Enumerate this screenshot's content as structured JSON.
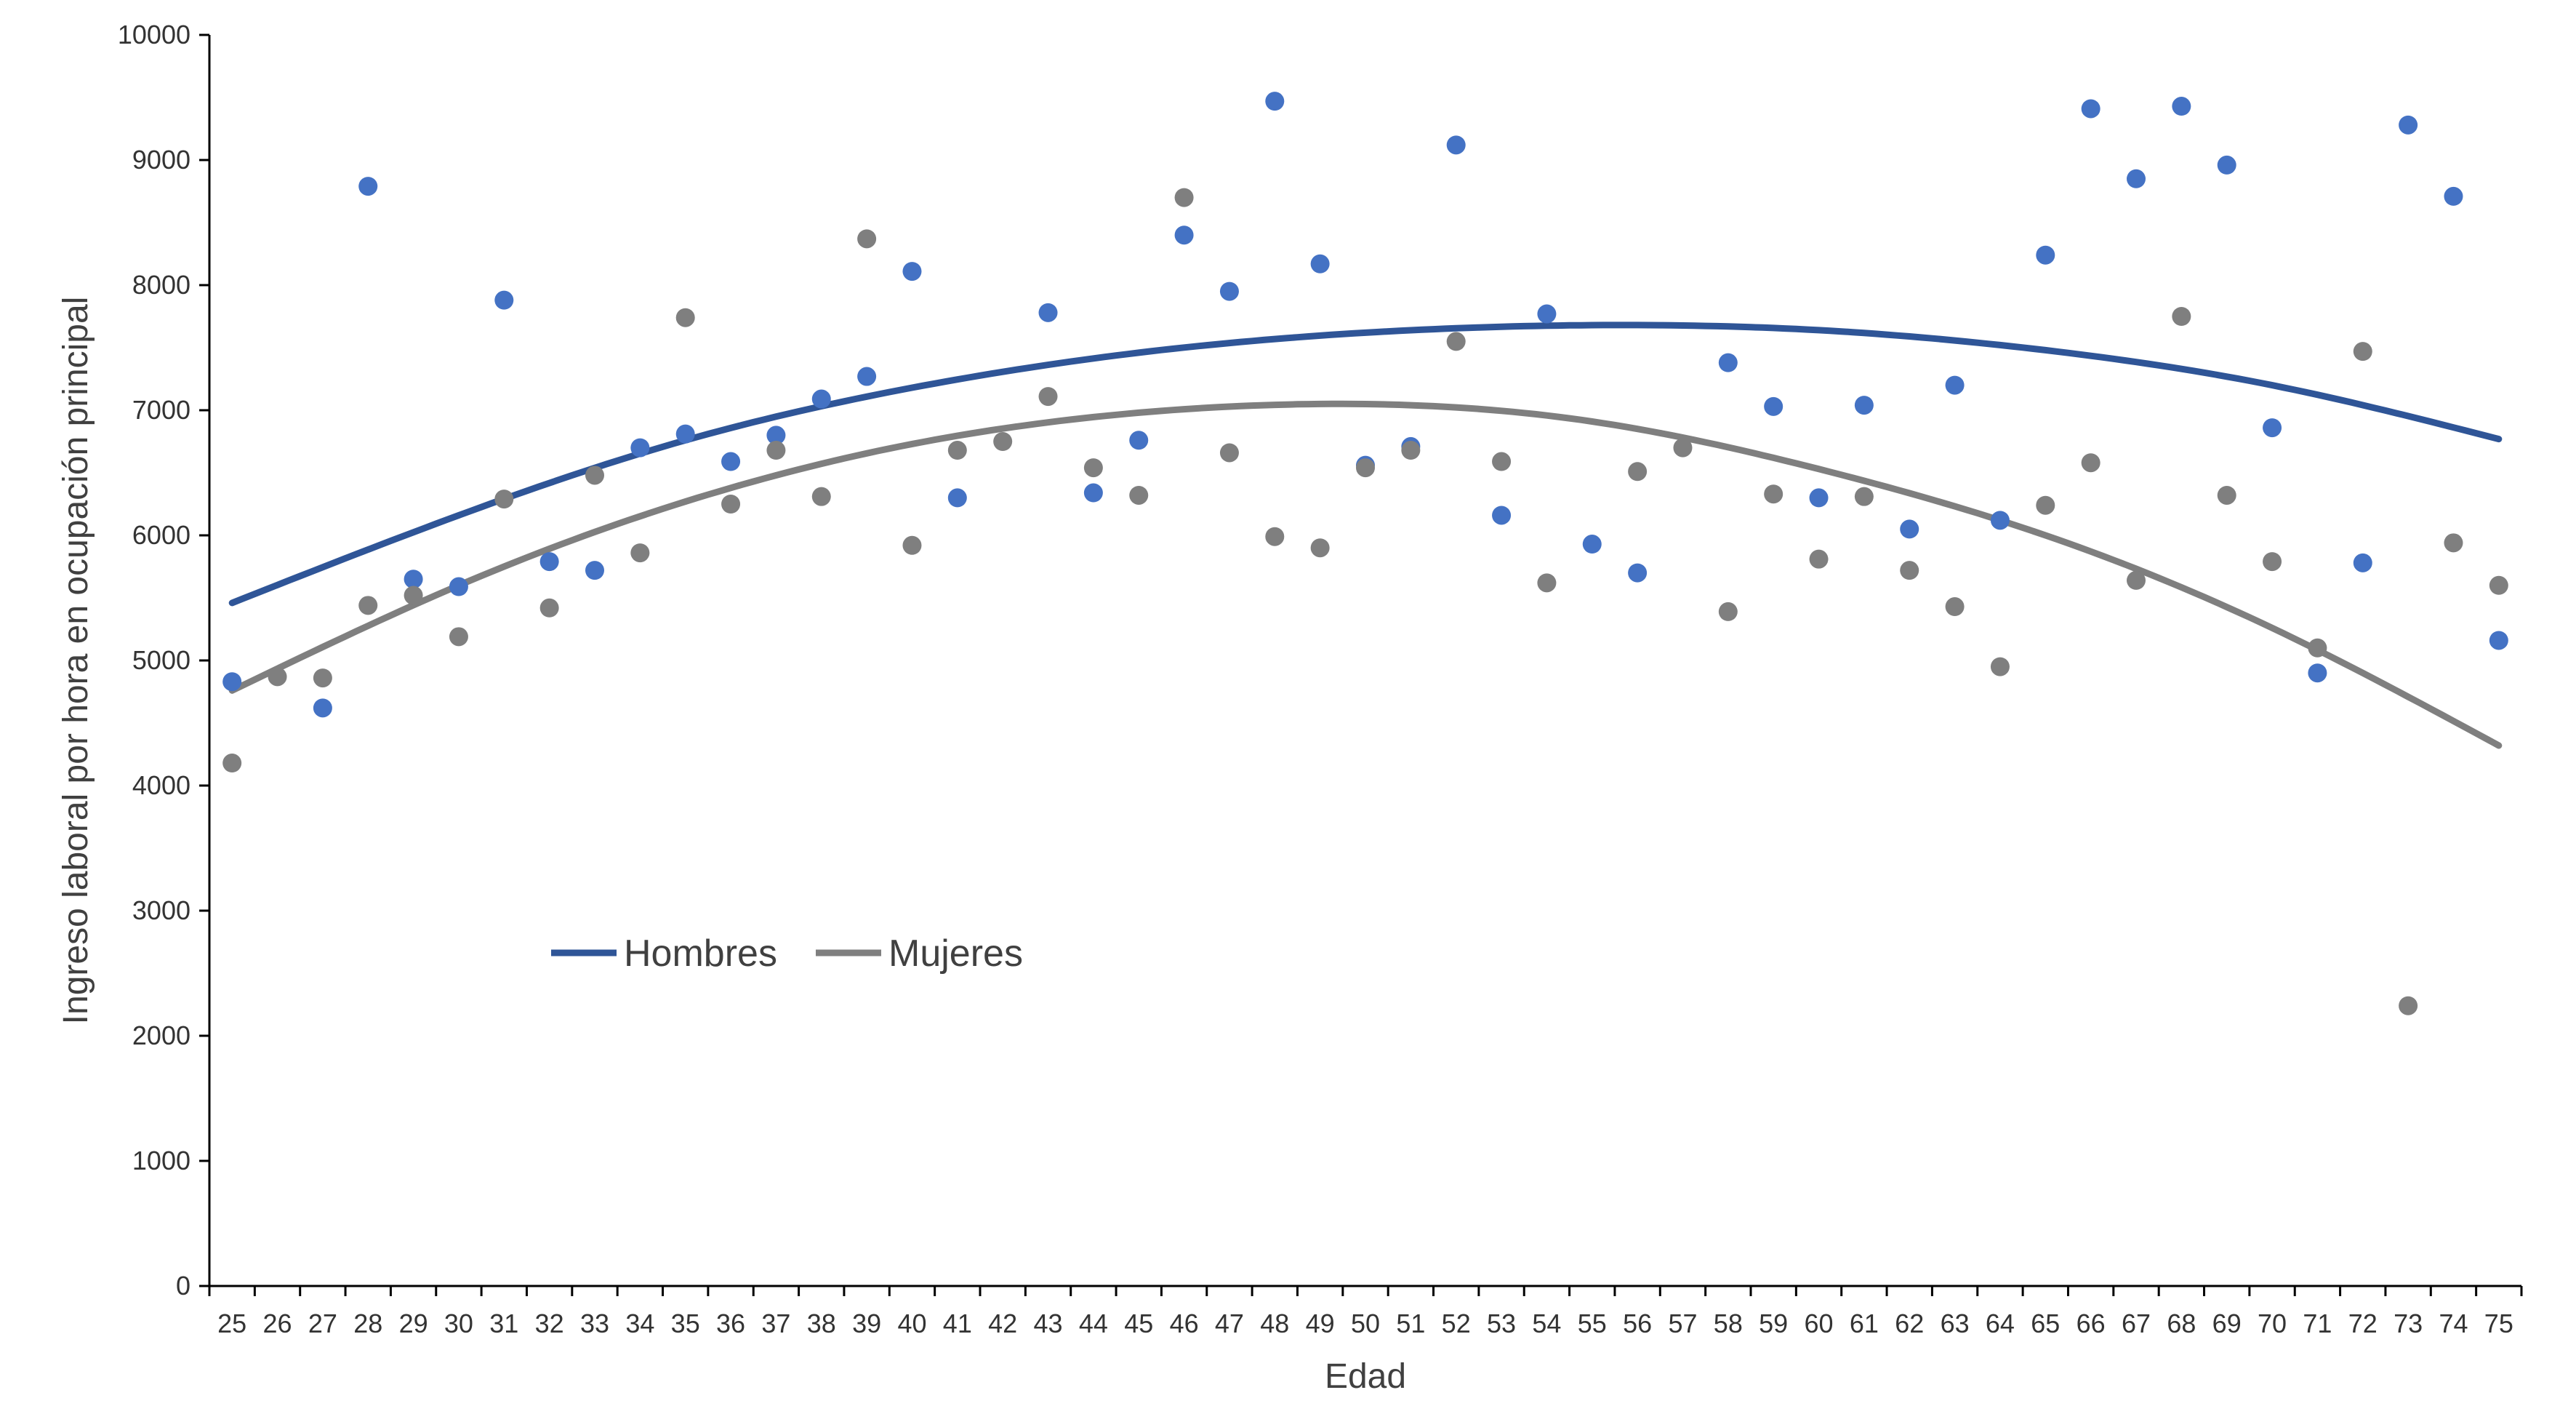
{
  "chart_data": {
    "type": "scatter",
    "title": "",
    "xlabel": "Edad",
    "ylabel": "Ingreso laboral por hora en ocupación principal",
    "xlim": [
      24.5,
      75.5
    ],
    "ylim": [
      0,
      10000
    ],
    "y_ticks": [
      0,
      1000,
      2000,
      3000,
      4000,
      5000,
      6000,
      7000,
      8000,
      9000,
      10000
    ],
    "x_ticks": [
      25,
      26,
      27,
      28,
      29,
      30,
      31,
      32,
      33,
      34,
      35,
      36,
      37,
      38,
      39,
      40,
      41,
      42,
      43,
      44,
      45,
      46,
      47,
      48,
      49,
      50,
      51,
      52,
      53,
      54,
      55,
      56,
      57,
      58,
      59,
      60,
      61,
      62,
      63,
      64,
      65,
      66,
      67,
      68,
      69,
      70,
      71,
      72,
      73,
      74,
      75
    ],
    "grid": false,
    "legend_position": "lower-left",
    "legend": [
      {
        "label": "Hombres",
        "color": "#2f5597"
      },
      {
        "label": "Mujeres",
        "color": "#7f7f7f"
      }
    ],
    "series": [
      {
        "name": "Hombres",
        "kind": "points",
        "color": "#4472c4",
        "points": [
          [
            25,
            4830
          ],
          [
            27,
            4620
          ],
          [
            28,
            8790
          ],
          [
            29,
            5650
          ],
          [
            30,
            5590
          ],
          [
            31,
            7880
          ],
          [
            32,
            5790
          ],
          [
            33,
            5720
          ],
          [
            34,
            6700
          ],
          [
            35,
            6810
          ],
          [
            36,
            6590
          ],
          [
            37,
            6800
          ],
          [
            38,
            7090
          ],
          [
            39,
            7270
          ],
          [
            40,
            8110
          ],
          [
            41,
            6300
          ],
          [
            43,
            7780
          ],
          [
            44,
            6340
          ],
          [
            45,
            6760
          ],
          [
            46,
            8400
          ],
          [
            47,
            7950
          ],
          [
            48,
            9470
          ],
          [
            49,
            8170
          ],
          [
            50,
            6560
          ],
          [
            51,
            6710
          ],
          [
            52,
            9120
          ],
          [
            53,
            6160
          ],
          [
            54,
            7770
          ],
          [
            55,
            5930
          ],
          [
            56,
            5700
          ],
          [
            58,
            7380
          ],
          [
            59,
            7030
          ],
          [
            60,
            6300
          ],
          [
            61,
            7040
          ],
          [
            62,
            6050
          ],
          [
            63,
            7200
          ],
          [
            64,
            6120
          ],
          [
            65,
            8240
          ],
          [
            66,
            9410
          ],
          [
            67,
            8850
          ],
          [
            68,
            9430
          ],
          [
            69,
            8960
          ],
          [
            70,
            6860
          ],
          [
            71,
            4900
          ],
          [
            72,
            5780
          ],
          [
            73,
            9280
          ],
          [
            74,
            8710
          ],
          [
            75,
            5160
          ]
        ]
      },
      {
        "name": "Mujeres",
        "kind": "points",
        "color": "#7f7f7f",
        "points": [
          [
            25,
            4180
          ],
          [
            26,
            4870
          ],
          [
            27,
            4860
          ],
          [
            28,
            5440
          ],
          [
            29,
            5520
          ],
          [
            30,
            5190
          ],
          [
            31,
            6290
          ],
          [
            32,
            5420
          ],
          [
            33,
            6480
          ],
          [
            34,
            5860
          ],
          [
            35,
            7740
          ],
          [
            36,
            6250
          ],
          [
            37,
            6680
          ],
          [
            38,
            6310
          ],
          [
            39,
            8370
          ],
          [
            40,
            5920
          ],
          [
            41,
            6680
          ],
          [
            42,
            6750
          ],
          [
            43,
            7110
          ],
          [
            44,
            6540
          ],
          [
            45,
            6320
          ],
          [
            46,
            8700
          ],
          [
            47,
            6660
          ],
          [
            48,
            5990
          ],
          [
            49,
            5900
          ],
          [
            50,
            6540
          ],
          [
            51,
            6680
          ],
          [
            52,
            7550
          ],
          [
            53,
            6590
          ],
          [
            54,
            5620
          ],
          [
            56,
            6510
          ],
          [
            57,
            6700
          ],
          [
            58,
            5390
          ],
          [
            59,
            6330
          ],
          [
            60,
            5810
          ],
          [
            61,
            6310
          ],
          [
            62,
            5720
          ],
          [
            63,
            5430
          ],
          [
            64,
            4950
          ],
          [
            65,
            6240
          ],
          [
            66,
            6580
          ],
          [
            67,
            5640
          ],
          [
            68,
            7750
          ],
          [
            69,
            6320
          ],
          [
            70,
            5790
          ],
          [
            71,
            5100
          ],
          [
            72,
            7470
          ],
          [
            73,
            2240
          ],
          [
            74,
            5940
          ],
          [
            75,
            5600
          ]
        ]
      },
      {
        "name": "Hombres",
        "kind": "trend",
        "color": "#2f5597",
        "points": [
          [
            25,
            5460
          ],
          [
            30,
            6160
          ],
          [
            35,
            6760
          ],
          [
            40,
            7180
          ],
          [
            45,
            7460
          ],
          [
            50,
            7620
          ],
          [
            55,
            7680
          ],
          [
            60,
            7640
          ],
          [
            65,
            7480
          ],
          [
            70,
            7200
          ],
          [
            75,
            6770
          ]
        ]
      },
      {
        "name": "Mujeres",
        "kind": "trend",
        "color": "#7f7f7f",
        "points": [
          [
            25,
            4760
          ],
          [
            30,
            5600
          ],
          [
            35,
            6270
          ],
          [
            40,
            6730
          ],
          [
            45,
            6980
          ],
          [
            49,
            7050
          ],
          [
            55,
            6910
          ],
          [
            60,
            6530
          ],
          [
            65,
            6000
          ],
          [
            70,
            5260
          ],
          [
            75,
            4320
          ]
        ]
      }
    ]
  }
}
